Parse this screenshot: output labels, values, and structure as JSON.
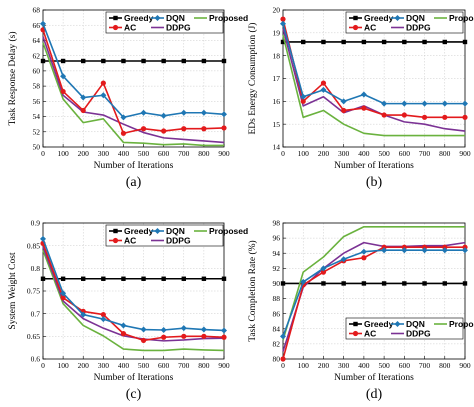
{
  "chart_data": [
    {
      "type": "line",
      "panel_label": "(a)",
      "xlabel": "Number of Iterations",
      "ylabel": "Task Response Delay (s)",
      "x": [
        0,
        100,
        200,
        300,
        400,
        500,
        600,
        700,
        800,
        900
      ],
      "xticks": [
        "0",
        "100",
        "200",
        "300",
        "400",
        "500",
        "600",
        "700",
        "800",
        "900"
      ],
      "ylim": [
        50,
        68
      ],
      "yticks": [
        "50",
        "52",
        "54",
        "56",
        "58",
        "60",
        "62",
        "64",
        "66",
        "68"
      ],
      "grid": true,
      "legend": "top-right",
      "series": [
        {
          "name": "Greedy",
          "values": [
            61.3,
            61.3,
            61.3,
            61.3,
            61.3,
            61.3,
            61.3,
            61.3,
            61.3,
            61.3
          ]
        },
        {
          "name": "DQN",
          "values": [
            66.2,
            59.3,
            56.5,
            56.8,
            53.9,
            54.5,
            54.1,
            54.5,
            54.5,
            54.3
          ]
        },
        {
          "name": "Proposed",
          "values": [
            63.7,
            56.3,
            53.2,
            53.7,
            50.6,
            50.5,
            50.3,
            50.4,
            50.2,
            50.2
          ]
        },
        {
          "name": "AC",
          "values": [
            65.4,
            57.3,
            54.8,
            58.4,
            51.8,
            52.4,
            52.1,
            52.4,
            52.4,
            52.5
          ]
        },
        {
          "name": "DDPG",
          "values": [
            64.5,
            56.8,
            54.6,
            54.2,
            53.0,
            51.9,
            51.2,
            51.0,
            50.8,
            50.6
          ]
        }
      ]
    },
    {
      "type": "line",
      "panel_label": "(b)",
      "xlabel": "Number of Iterations",
      "ylabel": "EDs Energy Consumption (J)",
      "x": [
        0,
        100,
        200,
        300,
        400,
        500,
        600,
        700,
        800,
        900
      ],
      "xticks": [
        "0",
        "100",
        "200",
        "300",
        "400",
        "500",
        "600",
        "700",
        "800",
        "900"
      ],
      "ylim": [
        14,
        20
      ],
      "yticks": [
        "14",
        "15",
        "16",
        "17",
        "18",
        "19",
        "20"
      ],
      "grid": true,
      "legend": "top-right",
      "series": [
        {
          "name": "Greedy",
          "values": [
            18.6,
            18.6,
            18.6,
            18.6,
            18.6,
            18.6,
            18.6,
            18.6,
            18.6,
            18.6
          ]
        },
        {
          "name": "DQN",
          "values": [
            19.4,
            16.2,
            16.5,
            16.0,
            16.3,
            15.9,
            15.9,
            15.9,
            15.9,
            15.9
          ]
        },
        {
          "name": "Proposed",
          "values": [
            18.9,
            15.3,
            15.6,
            15.0,
            14.6,
            14.5,
            14.5,
            14.5,
            14.5,
            14.5
          ]
        },
        {
          "name": "AC",
          "values": [
            19.6,
            16.0,
            16.8,
            15.6,
            15.7,
            15.4,
            15.4,
            15.3,
            15.3,
            15.3
          ]
        },
        {
          "name": "DDPG",
          "values": [
            19.2,
            15.8,
            16.2,
            15.5,
            15.8,
            15.4,
            15.1,
            15.0,
            14.8,
            14.7
          ]
        }
      ]
    },
    {
      "type": "line",
      "panel_label": "(c)",
      "xlabel": "Number of Iterations",
      "ylabel": "System Weight Cost",
      "x": [
        0,
        100,
        200,
        300,
        400,
        500,
        600,
        700,
        800,
        900
      ],
      "xticks": [
        "0",
        "100",
        "200",
        "300",
        "400",
        "500",
        "600",
        "700",
        "800",
        "900"
      ],
      "ylim": [
        0.6,
        0.9
      ],
      "yticks": [
        "0.6",
        "0.65",
        "0.7",
        "0.75",
        "0.8",
        "0.85",
        "0.9"
      ],
      "grid": true,
      "legend": "top-right",
      "series": [
        {
          "name": "Greedy",
          "values": [
            0.777,
            0.777,
            0.777,
            0.777,
            0.777,
            0.777,
            0.777,
            0.777,
            0.777,
            0.777
          ]
        },
        {
          "name": "DQN",
          "values": [
            0.865,
            0.745,
            0.698,
            0.688,
            0.674,
            0.665,
            0.664,
            0.668,
            0.665,
            0.663
          ]
        },
        {
          "name": "Proposed",
          "values": [
            0.84,
            0.722,
            0.674,
            0.651,
            0.622,
            0.619,
            0.619,
            0.622,
            0.62,
            0.619
          ]
        },
        {
          "name": "AC",
          "values": [
            0.855,
            0.735,
            0.705,
            0.698,
            0.656,
            0.641,
            0.648,
            0.65,
            0.65,
            0.648
          ]
        },
        {
          "name": "DDPG",
          "values": [
            0.848,
            0.728,
            0.689,
            0.668,
            0.651,
            0.644,
            0.64,
            0.642,
            0.645,
            0.646
          ]
        }
      ]
    },
    {
      "type": "line",
      "panel_label": "(d)",
      "xlabel": "Number of Iterations",
      "ylabel": "Task Completion Rate (%)",
      "x": [
        0,
        100,
        200,
        300,
        400,
        500,
        600,
        700,
        800,
        900
      ],
      "xticks": [
        "0",
        "100",
        "200",
        "300",
        "400",
        "500",
        "600",
        "700",
        "800",
        "900"
      ],
      "ylim": [
        80,
        98
      ],
      "yticks": [
        "80",
        "82",
        "84",
        "86",
        "88",
        "90",
        "92",
        "94",
        "96",
        "98"
      ],
      "grid": true,
      "legend": "bottom-right",
      "series": [
        {
          "name": "Greedy",
          "values": [
            90.0,
            90.0,
            90.0,
            90.0,
            90.0,
            90.0,
            90.0,
            90.0,
            90.0,
            90.0
          ]
        },
        {
          "name": "DQN",
          "values": [
            83.0,
            90.2,
            92.0,
            93.2,
            94.2,
            94.4,
            94.4,
            94.4,
            94.4,
            94.4
          ]
        },
        {
          "name": "Proposed",
          "values": [
            82.5,
            91.5,
            93.5,
            96.2,
            97.5,
            97.5,
            97.5,
            97.5,
            97.5,
            97.5
          ]
        },
        {
          "name": "AC",
          "values": [
            80.0,
            89.8,
            91.5,
            93.0,
            93.4,
            94.8,
            94.8,
            94.8,
            94.8,
            94.8
          ]
        },
        {
          "name": "DDPG",
          "values": [
            81.0,
            89.5,
            92.0,
            94.0,
            95.4,
            94.9,
            94.9,
            95.0,
            95.0,
            95.4
          ]
        }
      ]
    }
  ],
  "styles": {
    "Greedy": {
      "color": "#000000",
      "marker": "square"
    },
    "DQN": {
      "color": "#1f77b4",
      "marker": "diamond"
    },
    "Proposed": {
      "color": "#6ab23e",
      "marker": "none"
    },
    "AC": {
      "color": "#e31a1c",
      "marker": "circle"
    },
    "DDPG": {
      "color": "#7b3294",
      "marker": "none"
    }
  }
}
